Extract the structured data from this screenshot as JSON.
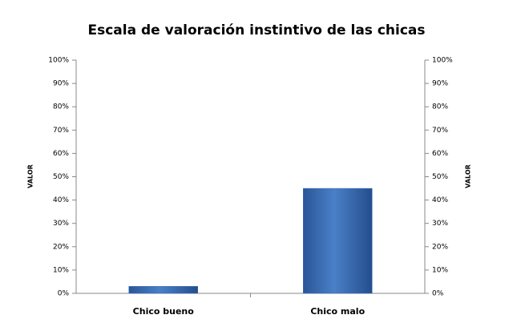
{
  "chart_data": {
    "type": "bar",
    "title": "Escala de valoración instintivo de las chicas",
    "categories": [
      "Chico bueno",
      "Chico malo"
    ],
    "values": [
      3,
      45
    ],
    "color": "#3b6fb6",
    "ylabel": "VALOR",
    "y2label": "VALOR",
    "ylim": [
      0,
      100
    ],
    "yticks": [
      {
        "value": 0,
        "label": "0%"
      },
      {
        "value": 10,
        "label": "10%"
      },
      {
        "value": 20,
        "label": "20%"
      },
      {
        "value": 30,
        "label": "30%"
      },
      {
        "value": 40,
        "label": "40%"
      },
      {
        "value": 50,
        "label": "50%"
      },
      {
        "value": 60,
        "label": "60%"
      },
      {
        "value": 70,
        "label": "70%"
      },
      {
        "value": 80,
        "label": "80%"
      },
      {
        "value": 90,
        "label": "90%"
      },
      {
        "value": 100,
        "label": "100%"
      }
    ],
    "y2lim": [
      0,
      100
    ],
    "y2ticks": [
      {
        "value": 0,
        "label": "0%"
      },
      {
        "value": 10,
        "label": "10%"
      },
      {
        "value": 20,
        "label": "20%"
      },
      {
        "value": 30,
        "label": "30%"
      },
      {
        "value": 40,
        "label": "40%"
      },
      {
        "value": 50,
        "label": "50%"
      },
      {
        "value": 60,
        "label": "60%"
      },
      {
        "value": 70,
        "label": "70%"
      },
      {
        "value": 80,
        "label": "80%"
      },
      {
        "value": 90,
        "label": "90%"
      },
      {
        "value": 100,
        "label": "100%"
      }
    ],
    "grid": false
  }
}
